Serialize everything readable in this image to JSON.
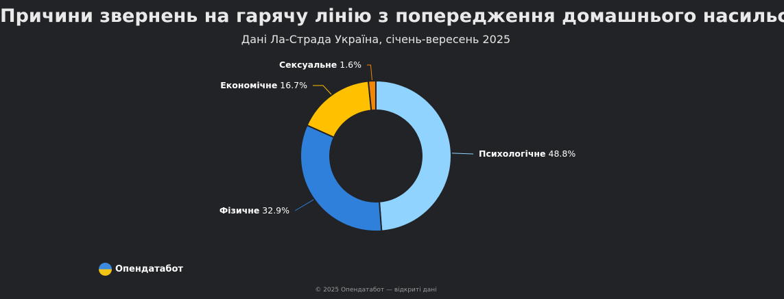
{
  "chart_data": {
    "type": "pie",
    "title": "Причини звернень на гарячу лінію з попередження домашнього насильства",
    "subtitle": "Дані Ла-Страда Україна, січень-вересень 2025",
    "slices": [
      {
        "label": "Психологічне",
        "value": 48.8,
        "value_label": "48.8%",
        "color": "#8fd3fe"
      },
      {
        "label": "Фізичне",
        "value": 32.9,
        "value_label": "32.9%",
        "color": "#2f80da"
      },
      {
        "label": "Економічне",
        "value": 16.7,
        "value_label": "16.7%",
        "color": "#ffc000"
      },
      {
        "label": "Сексуальне",
        "value": 1.6,
        "value_label": "1.6%",
        "color": "#f28705"
      }
    ],
    "donut": true
  },
  "brand": {
    "name": "Опендатабот",
    "icon": "opendatabot-logo-icon"
  },
  "footer": {
    "text": "© 2025 Опендатабот — відкриті дані"
  }
}
